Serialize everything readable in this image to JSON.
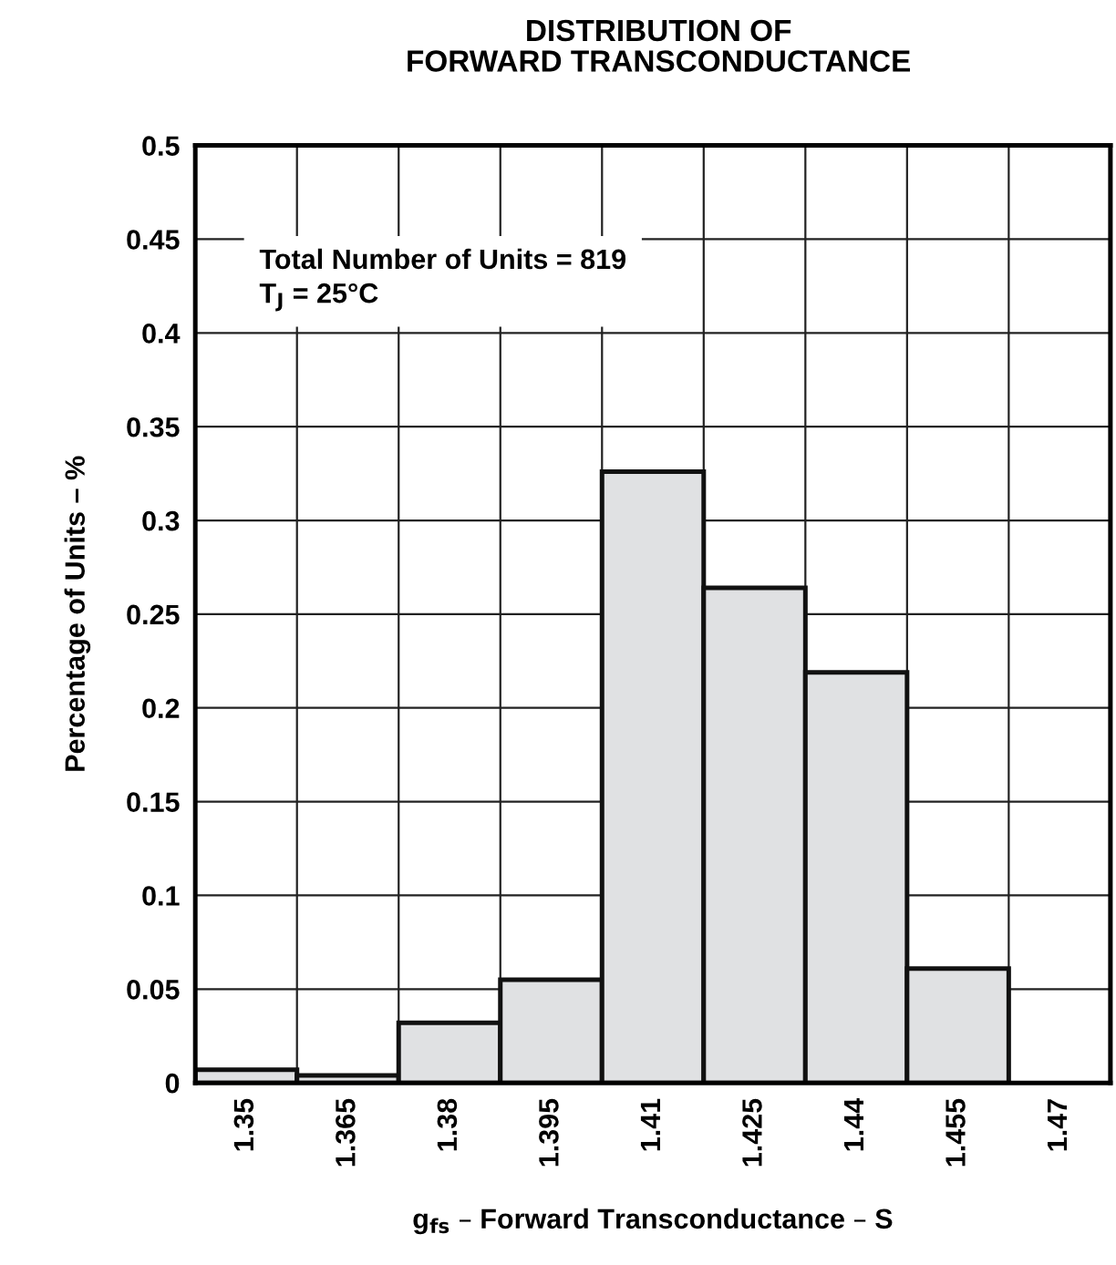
{
  "chart_data": {
    "type": "histogram",
    "title": "DISTRIBUTION OF\nFORWARD TRANSCONDUCTANCE",
    "xlabel": "g$_{fs}$ – Forward Transconductance – S",
    "ylabel": "Percentage of Units – %",
    "bins": [
      1.3425,
      1.3575,
      1.3725,
      1.3875,
      1.4025,
      1.4175,
      1.4325,
      1.4475,
      1.4625,
      1.4775
    ],
    "values": [
      0.007,
      0.004,
      0.032,
      0.055,
      0.326,
      0.264,
      0.219,
      0.061,
      0
    ],
    "color": "#e0e1e3",
    "xlim": [
      1.3425,
      1.4775
    ],
    "xticks": [
      1.35,
      1.365,
      1.38,
      1.395,
      1.41,
      1.425,
      1.44,
      1.455,
      1.47
    ],
    "ylim": [
      0,
      0.5
    ],
    "yticks": [
      0,
      0.05,
      0.1,
      0.15,
      0.2,
      0.25,
      0.3,
      0.35,
      0.4,
      0.45,
      0.5
    ],
    "grid": true,
    "annotations": [
      "Total Number of Units = 819\nT$_{J}$ = 25°C"
    ]
  }
}
